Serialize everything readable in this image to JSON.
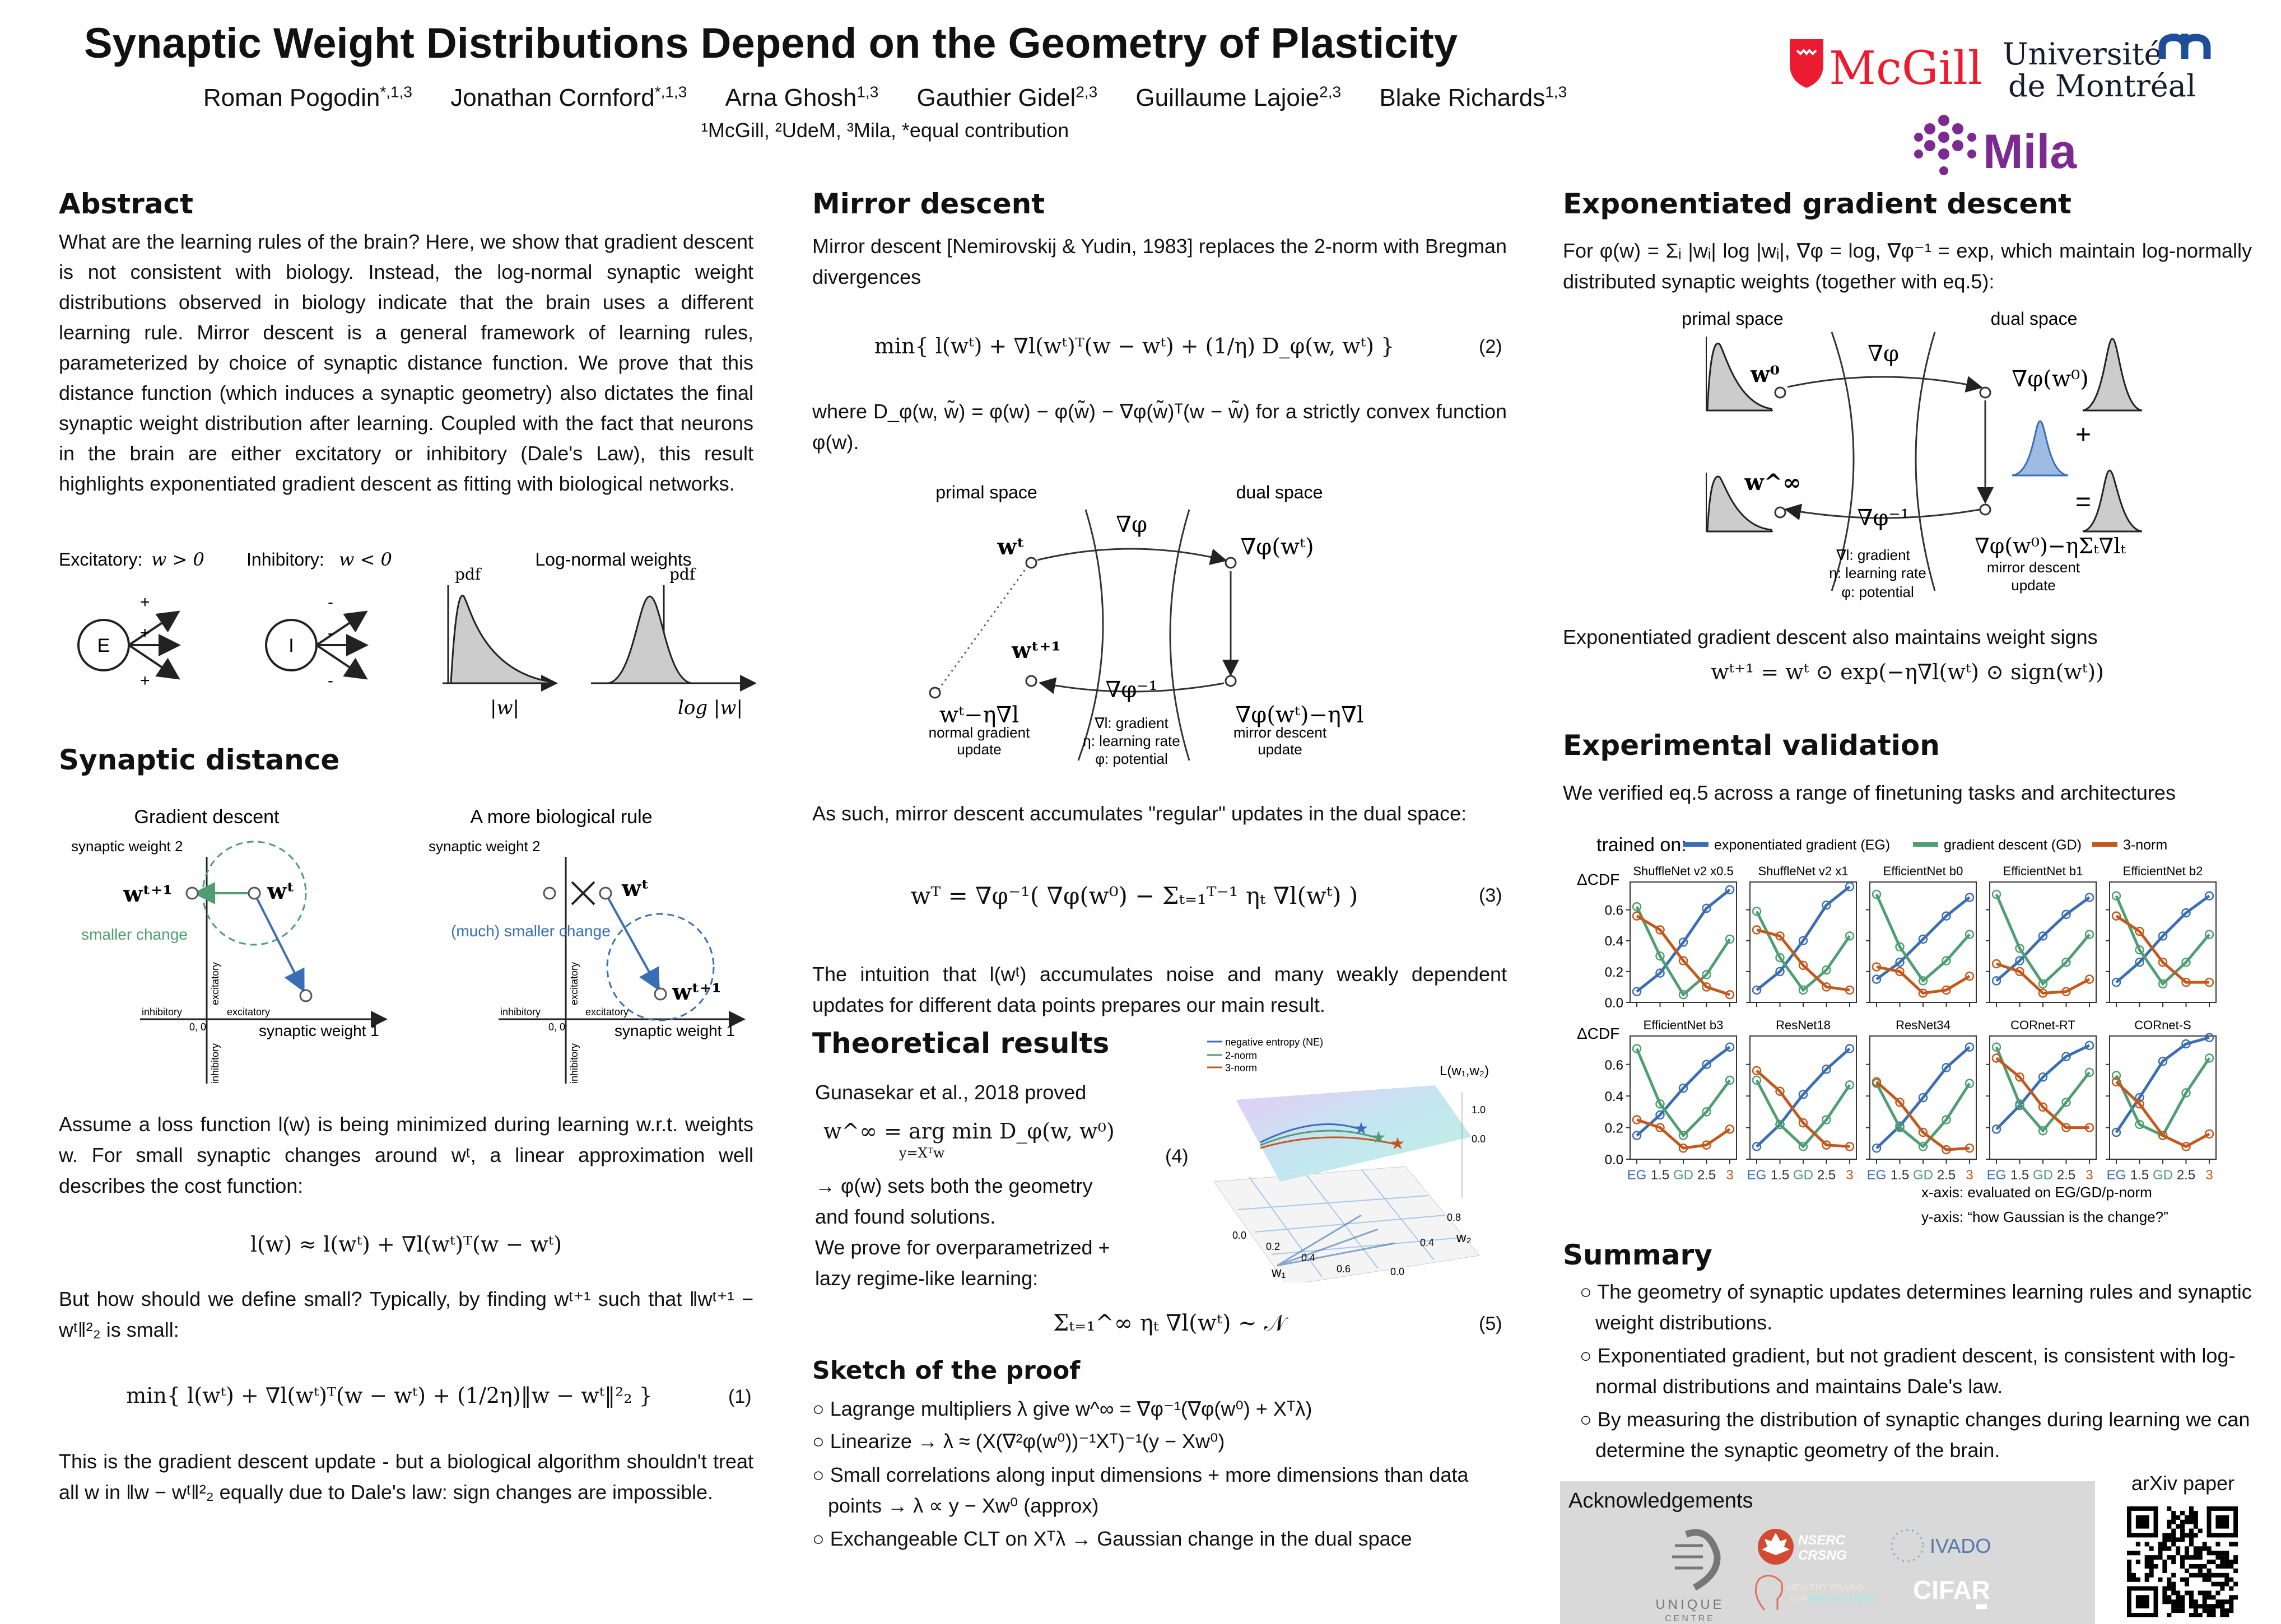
{
  "header": {
    "title": "Synaptic Weight Distributions Depend on the Geometry of Plasticity",
    "authors": [
      {
        "name": "Roman Pogodin",
        "sup": "*,1,3"
      },
      {
        "name": "Jonathan Cornford",
        "sup": "*,1,3"
      },
      {
        "name": "Arna Ghosh",
        "sup": "1,3"
      },
      {
        "name": "Gauthier Gidel",
        "sup": "2,3"
      },
      {
        "name": "Guillaume Lajoie",
        "sup": "2,3"
      },
      {
        "name": "Blake Richards",
        "sup": "1,3"
      }
    ],
    "affiliations": "¹McGill, ²UdeM, ³Mila, *equal contribution"
  },
  "logos": {
    "mcgill": "McGill",
    "udem_line1": "Université",
    "udem_line2": "de Montréal",
    "mila": "Mila"
  },
  "abstract": {
    "heading": "Abstract",
    "text": "What are the learning rules of the brain? Here, we show that gradient descent is not consistent with biology. Instead, the log-normal synaptic weight distributions observed in biology indicate that the brain uses a different learning rule. Mirror descent is a general framework of learning rules, parameterized by choice of synaptic distance function. We prove that this distance function (which induces a synaptic geometry) also dictates the final synaptic weight distribution after learning. Coupled with the fact that neurons in the brain are either excitatory or inhibitory (Dale's Law), this result highlights exponentiated gradient descent as fitting with biological networks.",
    "fig": {
      "excitatory": "Excitatory:",
      "exc_cond": "w > 0",
      "inhibitory": "Inhibitory:",
      "inh_cond": "w < 0",
      "E": "E",
      "I": "I",
      "plus": "+",
      "minus": "-",
      "lognormal_title": "Log-normal weights",
      "pdf": "pdf",
      "x_abs": "|w|",
      "x_log": "log |w|"
    }
  },
  "synaptic_distance": {
    "heading": "Synaptic distance",
    "fig": {
      "gd_title": "Gradient descent",
      "bio_title": "A more biological rule",
      "sw2": "synaptic weight 2",
      "sw1": "synaptic weight 1",
      "w_next": "wᵗ⁺¹",
      "w_t": "wᵗ",
      "smaller": "smaller change",
      "much_smaller": "(much) smaller change",
      "inhibitory": "inhibitory",
      "excitatory": "excitatory",
      "origin": "0, 0"
    },
    "p1": "Assume a loss function l(w) is being minimized during learning w.r.t. weights w. For small synaptic changes around wᵗ, a linear approximation well describes the cost function:",
    "eq_lin": "l(w) ≈ l(wᵗ) + ∇l(wᵗ)ᵀ(w − wᵗ)",
    "p2": "But how should we define small? Typically, by finding wᵗ⁺¹ such that ‖wᵗ⁺¹ − wᵗ‖²₂ is small:",
    "eq1": "min{ l(wᵗ) + ∇l(wᵗ)ᵀ(w − wᵗ) + (1/2η)‖w − wᵗ‖²₂ }",
    "eq1_num": "(1)",
    "p3": "This is the gradient descent update - but a biological algorithm shouldn't treat all w in ‖w − wᵗ‖²₂ equally due to Dale's law: sign changes are impossible."
  },
  "mirror": {
    "heading": "Mirror descent",
    "p1": "Mirror descent [Nemirovskij & Yudin, 1983] replaces the 2-norm with Bregman divergences",
    "eq2": "min{ l(wᵗ) + ∇l(wᵗ)ᵀ(w − wᵗ) + (1/η) D_φ(w, wᵗ) }",
    "eq2_num": "(2)",
    "p2": "where D_φ(w, w̃) = φ(w) − φ(w̃) − ∇φ(w̃)ᵀ(w − w̃) for a strictly convex function φ(w).",
    "fig": {
      "primal": "primal space",
      "dual": "dual space",
      "grad_phi": "∇φ",
      "grad_phi_inv": "∇φ⁻¹",
      "w_t": "wᵗ",
      "phi_w_t": "∇φ(wᵗ)",
      "w_next": "wᵗ⁺¹",
      "gd_point": "wᵗ−η∇l",
      "gd_label1": "normal gradient",
      "gd_label2": "update",
      "md_point": "∇φ(wᵗ)−η∇l",
      "md_label1": "mirror descent",
      "md_label2": "update",
      "leg1": "∇l: gradient",
      "leg2": "η: learning rate",
      "leg3": "φ: potential"
    },
    "p3": "As such, mirror descent accumulates \"regular\" updates in the dual space:",
    "eq3": "wᵀ = ∇φ⁻¹( ∇φ(w⁰) − Σₜ₌₁ᵀ⁻¹ ηₜ ∇l(wᵗ) )",
    "eq3_num": "(3)",
    "p4": "The intuition that l(wᵗ) accumulates noise and many weakly dependent updates for different data points prepares our main result."
  },
  "theory": {
    "heading": "Theoretical results",
    "l1": "Gunasekar et al., 2018 proved",
    "eq4": "w^∞ = arg min D_φ(w, w⁰)",
    "eq4_sub": "y=Xᵀw",
    "eq4_num": "(4)",
    "l2": "→ φ(w) sets both the geometry",
    "l3": "and found solutions.",
    "l4": "We prove for overparametrized +",
    "l5": "lazy regime-like learning:",
    "eq5": "Σₜ₌₁^∞ ηₜ ∇l(wᵗ) ∼ 𝒩",
    "eq5_num": "(5)",
    "plot": {
      "legend": [
        "negative entropy (NE)",
        "2-norm",
        "3-norm"
      ],
      "zlabel": "L(w₁,w₂)",
      "xlabel": "w₁",
      "ylabel": "w₂",
      "zticks": [
        "1.0",
        "0.0"
      ],
      "xticks": [
        "0.0",
        "0.2",
        "0.4",
        "0.6"
      ],
      "yticks": [
        "0.8",
        "0.4",
        "0.0"
      ]
    }
  },
  "proof": {
    "heading": "Sketch of the proof",
    "bullets": [
      "Lagrange multipliers λ give w^∞ = ∇φ⁻¹(∇φ(w⁰) + Xᵀλ)",
      "Linearize → λ ≈ (X(∇²φ(w⁰))⁻¹Xᵀ)⁻¹(y − Xw⁰)",
      "Small correlations along input dimensions + more dimensions than data points → λ ∝ y − Xw⁰ (approx)",
      "Exchangeable CLT on Xᵀλ → Gaussian change in the dual space"
    ]
  },
  "eg": {
    "heading": "Exponentiated gradient descent",
    "p1": "For φ(w) = Σᵢ |wᵢ| log |wᵢ|, ∇φ = log, ∇φ⁻¹ = exp, which maintain log-normally distributed synaptic weights (together with eq.5):",
    "fig": {
      "primal": "primal space",
      "dual": "dual space",
      "grad_phi": "∇φ",
      "grad_phi_inv": "∇φ⁻¹",
      "w0": "w⁰",
      "phi_w0": "∇φ(w⁰)",
      "w_inf": "w^∞",
      "plus": "+",
      "equals": "=",
      "md_point": "∇φ(w⁰)−ηΣₜ∇lₜ",
      "md_label1": "mirror descent",
      "md_label2": "update",
      "leg1": "∇l: gradient",
      "leg2": "η: learning rate",
      "leg3": "φ: potential"
    },
    "p2": "Exponentiated gradient descent also maintains weight signs",
    "eq": "wᵗ⁺¹ = wᵗ ⊙ exp(−η∇l(wᵗ) ⊙ sign(wᵗ))"
  },
  "experiment": {
    "heading": "Experimental validation",
    "p1": "We verified eq.5 across a range of finetuning tasks and architectures"
  },
  "chart_data": {
    "type": "line",
    "legend_title": "trained on:",
    "ylabel": "ΔCDF",
    "x": [
      "EG",
      "1.5",
      "GD",
      "2.5",
      "3"
    ],
    "ylim": [
      0,
      0.78
    ],
    "yticks": [
      "0.0",
      "0.2",
      "0.4",
      "0.6"
    ],
    "xlabel_note": "x-axis: evaluated on EG/GD/p-norm",
    "ylabel_note": "y-axis: “how Gaussian is the change?”",
    "colors": {
      "EG": "#3a6eb4",
      "GD": "#4e9e72",
      "3n": "#c4571c",
      "tick": "#333333"
    },
    "series_names": [
      "exponentiated gradient (EG)",
      "gradient descent (GD)",
      "3-norm"
    ],
    "panels": [
      {
        "title": "ShuffleNet v2 x0.5",
        "EG": [
          0.07,
          0.19,
          0.39,
          0.61,
          0.73
        ],
        "GD": [
          0.62,
          0.3,
          0.05,
          0.18,
          0.41
        ],
        "3n": [
          0.56,
          0.47,
          0.27,
          0.1,
          0.05
        ]
      },
      {
        "title": "ShuffleNet v2 x1",
        "EG": [
          0.08,
          0.2,
          0.4,
          0.63,
          0.75
        ],
        "GD": [
          0.59,
          0.29,
          0.08,
          0.21,
          0.43
        ],
        "3n": [
          0.47,
          0.43,
          0.24,
          0.1,
          0.08
        ]
      },
      {
        "title": "EfficientNet b0",
        "EG": [
          0.15,
          0.26,
          0.41,
          0.56,
          0.68
        ],
        "GD": [
          0.7,
          0.36,
          0.14,
          0.27,
          0.44
        ],
        "3n": [
          0.23,
          0.2,
          0.06,
          0.08,
          0.17
        ]
      },
      {
        "title": "EfficientNet b1",
        "EG": [
          0.14,
          0.27,
          0.43,
          0.57,
          0.68
        ],
        "GD": [
          0.7,
          0.35,
          0.12,
          0.26,
          0.44
        ],
        "3n": [
          0.25,
          0.2,
          0.06,
          0.07,
          0.15
        ]
      },
      {
        "title": "EfficientNet b2",
        "EG": [
          0.13,
          0.26,
          0.43,
          0.58,
          0.69
        ],
        "GD": [
          0.69,
          0.34,
          0.12,
          0.26,
          0.44
        ],
        "3n": [
          0.56,
          0.46,
          0.26,
          0.13,
          0.13
        ]
      },
      {
        "title": "EfficientNet b3",
        "EG": [
          0.15,
          0.28,
          0.45,
          0.6,
          0.71
        ],
        "GD": [
          0.7,
          0.35,
          0.15,
          0.3,
          0.5
        ],
        "3n": [
          0.25,
          0.2,
          0.07,
          0.09,
          0.19
        ]
      },
      {
        "title": "ResNet18",
        "EG": [
          0.08,
          0.22,
          0.41,
          0.57,
          0.7
        ],
        "GD": [
          0.5,
          0.22,
          0.08,
          0.25,
          0.47
        ],
        "3n": [
          0.56,
          0.43,
          0.23,
          0.09,
          0.08
        ]
      },
      {
        "title": "ResNet34",
        "EG": [
          0.07,
          0.21,
          0.39,
          0.58,
          0.71
        ],
        "GD": [
          0.48,
          0.2,
          0.08,
          0.25,
          0.48
        ],
        "3n": [
          0.49,
          0.36,
          0.17,
          0.06,
          0.07
        ]
      },
      {
        "title": "CORnet-RT",
        "EG": [
          0.19,
          0.34,
          0.52,
          0.65,
          0.72
        ],
        "GD": [
          0.71,
          0.35,
          0.18,
          0.36,
          0.55
        ],
        "3n": [
          0.64,
          0.52,
          0.33,
          0.2,
          0.2
        ]
      },
      {
        "title": "CORnet-S",
        "EG": [
          0.17,
          0.39,
          0.62,
          0.73,
          0.77
        ],
        "GD": [
          0.53,
          0.22,
          0.15,
          0.42,
          0.64
        ],
        "3n": [
          0.49,
          0.35,
          0.15,
          0.08,
          0.16
        ]
      }
    ]
  },
  "summary": {
    "heading": "Summary",
    "bullets": [
      "The geometry of synaptic updates determines learning rules and synaptic weight distributions.",
      "Exponentiated gradient, but not gradient descent, is consistent with log-normal distributions and maintains Dale's law.",
      "By measuring the distribution of synaptic changes during learning we can determine the synaptic geometry of the brain."
    ]
  },
  "ack": {
    "heading": "Acknowledgements",
    "unique1": "UNIQUE",
    "unique2": "CENTRE",
    "nserc1": "NSERC",
    "nserc2": "CRSNG",
    "ivado": "IVADO",
    "hb1": "HEALTHY BRAINS",
    "hb2": "FOR",
    "hb3": "HEALTHY LIVES",
    "cifar": "CIFAR"
  },
  "arxiv": {
    "label": "arXiv paper"
  }
}
